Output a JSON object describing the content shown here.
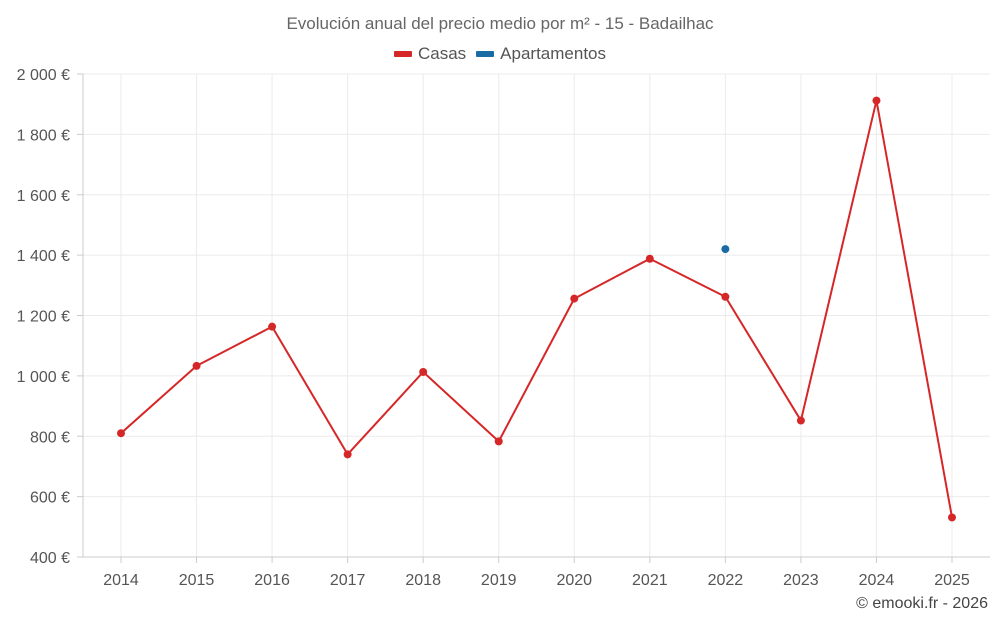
{
  "chart_data": {
    "type": "line",
    "title": "Evolución anual del precio medio por m² - 15 - Badailhac",
    "xlabel": "",
    "ylabel": "",
    "categories": [
      "2014",
      "2015",
      "2016",
      "2017",
      "2018",
      "2019",
      "2020",
      "2021",
      "2022",
      "2023",
      "2024",
      "2025"
    ],
    "ylim": [
      400,
      2000
    ],
    "yticks": [
      400,
      600,
      800,
      1000,
      1200,
      1400,
      1600,
      1800,
      2000
    ],
    "ytick_labels": [
      "400 €",
      "600 €",
      "800 €",
      "1 000 €",
      "1 200 €",
      "1 400 €",
      "1 600 €",
      "1 800 €",
      "2 000 €"
    ],
    "grid": true,
    "legend_position": "top-center",
    "series": [
      {
        "name": "Casas",
        "color": "#d62728",
        "values": [
          810,
          1033,
          1163,
          740,
          1013,
          783,
          1256,
          1388,
          1262,
          852,
          1912,
          531
        ]
      },
      {
        "name": "Apartamentos",
        "color": "#1a6aa6",
        "values": [
          null,
          null,
          null,
          null,
          null,
          null,
          null,
          null,
          1420,
          null,
          null,
          null
        ]
      }
    ]
  },
  "credit": "© emooki.fr - 2026"
}
